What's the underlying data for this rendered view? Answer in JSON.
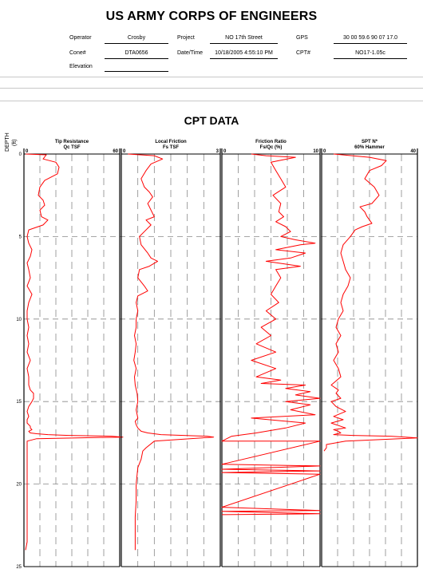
{
  "header": {
    "title": "US ARMY CORPS OF ENGINEERS",
    "operator_label": "Operator",
    "operator": "Crosby",
    "project_label": "Project",
    "project": "NO 17th Street",
    "gps_label": "GPS",
    "gps": "30 00 59.6  90 07 17.0",
    "cone_label": "Cone#",
    "cone": "DTA0656",
    "datetime_label": "Date/Time",
    "datetime": "10/18/2005 4:55:10 PM",
    "cpt_label": "CPT#",
    "cpt": "NO17-1.05c",
    "elevation_label": "Elevation",
    "elevation": ""
  },
  "chart_title": "CPT DATA",
  "depth_axis": {
    "label": "DEPTH",
    "unit": "(ft)",
    "ticks": [
      "0",
      "5",
      "10",
      "15",
      "20",
      "25"
    ],
    "range": [
      0,
      25
    ]
  },
  "colors": {
    "trace": "#ff0000",
    "axis": "#000000",
    "grid": "#888888"
  },
  "chart_data": [
    {
      "type": "line",
      "title": "Tip Resistance",
      "xlabel": "Qc TSF",
      "ylabel": "DEPTH (ft)",
      "xlim": [
        0,
        60
      ],
      "xticks": [
        "0",
        "60"
      ],
      "grid": true,
      "y_inverted": true,
      "series": [
        {
          "x": [
            1,
            14,
            12,
            20,
            22,
            21,
            13,
            10,
            9,
            12,
            13,
            10,
            11,
            15,
            12,
            3,
            2,
            3,
            5,
            4,
            2,
            3,
            4,
            2,
            5,
            3,
            2,
            2,
            3,
            2,
            3,
            2,
            4,
            2,
            3,
            3,
            4,
            6,
            6,
            5,
            3,
            2,
            3,
            2,
            2,
            4,
            4,
            5,
            3,
            4,
            8,
            15,
            28,
            55,
            62,
            8,
            2,
            2,
            2,
            2,
            2,
            2,
            2,
            2,
            2,
            1
          ],
          "y": [
            0,
            0.05,
            0.3,
            0.5,
            0.8,
            1.2,
            1.6,
            2.0,
            2.5,
            2.8,
            3.1,
            3.4,
            3.8,
            4.0,
            4.3,
            4.6,
            5.0,
            5.4,
            5.8,
            6.2,
            6.6,
            7.0,
            7.5,
            8.0,
            8.5,
            9.0,
            9.5,
            10.0,
            10.5,
            11.0,
            11.5,
            12.0,
            12.5,
            13.0,
            13.5,
            14.0,
            14.3,
            14.5,
            14.8,
            15.0,
            15.3,
            15.6,
            15.9,
            16.1,
            16.3,
            16.5,
            16.6,
            16.7,
            16.8,
            16.9,
            16.95,
            17.0,
            17.05,
            17.1,
            17.15,
            17.25,
            17.4,
            17.6,
            18.5,
            19.5,
            20.5,
            21.5,
            21.6,
            22.5,
            23.5,
            24.0
          ]
        }
      ]
    },
    {
      "type": "line",
      "title": "Local Friction",
      "xlabel": "Fs TSF",
      "ylabel": "DEPTH (ft)",
      "xlim": [
        0,
        3
      ],
      "xticks": [
        "0",
        "3"
      ],
      "grid": true,
      "y_inverted": true,
      "series": [
        {
          "x": [
            0.2,
            1.0,
            1.25,
            0.9,
            0.75,
            0.6,
            0.7,
            0.85,
            0.95,
            0.8,
            0.9,
            1.0,
            0.75,
            0.9,
            0.7,
            0.55,
            0.6,
            0.8,
            0.9,
            1.1,
            0.85,
            0.55,
            0.5,
            0.7,
            0.8,
            0.5,
            0.45,
            0.5,
            0.45,
            0.45,
            0.4,
            0.45,
            0.42,
            0.38,
            0.45,
            0.4,
            0.42,
            0.48,
            0.5,
            0.45,
            0.5,
            0.42,
            0.45,
            0.5,
            0.6,
            0.8,
            1.2,
            2.6,
            2.8,
            1.0,
            0.75,
            0.65,
            0.6,
            0.5,
            0.45,
            0.45,
            0.42,
            0.42,
            0.42
          ],
          "y": [
            0,
            0.1,
            0.3,
            0.6,
            1.0,
            1.5,
            2.0,
            2.3,
            2.6,
            3.0,
            3.4,
            3.8,
            4.0,
            4.3,
            4.7,
            5.0,
            5.5,
            6.0,
            6.3,
            6.5,
            6.8,
            7.0,
            7.5,
            8.0,
            8.3,
            8.6,
            9.0,
            9.5,
            10.0,
            10.5,
            11.0,
            11.5,
            12.0,
            12.5,
            13.0,
            13.5,
            14.0,
            14.5,
            15.0,
            15.5,
            16.0,
            16.2,
            16.4,
            16.6,
            16.8,
            16.9,
            17.0,
            17.1,
            17.15,
            17.4,
            17.8,
            18.0,
            18.5,
            19.0,
            20.0,
            21.0,
            22.0,
            23.0,
            24.0
          ]
        }
      ]
    },
    {
      "type": "line",
      "title": "Friction Ratio",
      "xlabel": "Fs/Qc (%)",
      "ylabel": "DEPTH (ft)",
      "xlim": [
        0,
        10
      ],
      "xticks": [
        "0",
        "10"
      ],
      "grid": true,
      "y_inverted": true,
      "series": [
        {
          "x": [
            3.0,
            4.5,
            7.5,
            5.0,
            5.5,
            6.0,
            6.5,
            5.2,
            6.0,
            5.8,
            6.3,
            5.5,
            6.5,
            7.0,
            6.0,
            7.5,
            9.5,
            8.0,
            5.5,
            8.5,
            7.0,
            4.5,
            8.0,
            5.5,
            6.0,
            5.5,
            5.0,
            5.8,
            4.5,
            5.5,
            4.0,
            5.0,
            3.5,
            5.5,
            3.0,
            5.5,
            3.5,
            6.0,
            4.0,
            8.5,
            6.5,
            9.0,
            7.5,
            10.0,
            6.5,
            9.0,
            7.0,
            9.5,
            3.0,
            8.5,
            6.5,
            3.5,
            1.0,
            0,
            10,
            0,
            10,
            0,
            10,
            0,
            10,
            0,
            10,
            0,
            10,
            0
          ],
          "y": [
            0,
            0.1,
            0.2,
            0.5,
            1.0,
            1.5,
            2.0,
            2.5,
            3.0,
            3.5,
            3.8,
            4.1,
            4.4,
            4.7,
            5.0,
            5.2,
            5.4,
            5.5,
            5.8,
            6.0,
            6.3,
            6.5,
            6.8,
            7.0,
            7.5,
            8.0,
            8.5,
            9.0,
            9.5,
            10.0,
            10.5,
            11.0,
            11.5,
            12.0,
            12.5,
            13.0,
            13.5,
            13.7,
            13.9,
            14.0,
            14.2,
            14.4,
            14.6,
            14.8,
            15.0,
            15.2,
            15.5,
            15.8,
            16.0,
            16.3,
            16.6,
            16.9,
            17.1,
            17.4,
            17.4,
            18.8,
            18.9,
            19.1,
            19.2,
            19.3,
            19.4,
            21.4,
            21.6,
            21.65,
            21.8,
            21.85
          ]
        }
      ]
    },
    {
      "type": "line",
      "title": "SPT N*",
      "xlabel": "60% Hammer",
      "ylabel": "DEPTH (ft)",
      "xlim": [
        0,
        40
      ],
      "xticks": [
        "0",
        "40"
      ],
      "grid": true,
      "y_inverted": true,
      "series": [
        {
          "x": [
            5,
            20,
            27,
            25,
            20,
            18,
            22,
            24,
            21,
            16,
            18,
            19,
            20,
            21,
            17,
            14,
            12,
            9,
            8,
            9,
            10,
            12,
            11,
            9,
            8,
            9,
            7,
            6,
            8,
            6,
            7,
            5,
            7,
            8,
            4,
            7,
            6,
            8,
            4,
            6,
            10,
            5,
            9,
            4,
            8,
            10,
            5,
            7,
            8,
            5,
            13,
            29,
            35,
            40,
            10,
            2,
            2,
            1
          ],
          "y": [
            0,
            0.2,
            0.4,
            0.7,
            1.0,
            1.5,
            2.0,
            2.5,
            3.0,
            3.2,
            3.5,
            3.8,
            4.0,
            4.2,
            4.4,
            4.6,
            5.0,
            5.5,
            6.0,
            6.5,
            7.0,
            7.5,
            8.0,
            8.5,
            9.0,
            9.5,
            10.0,
            10.5,
            11.0,
            11.5,
            12.0,
            12.5,
            13.0,
            13.5,
            14.0,
            14.3,
            14.5,
            14.8,
            15.0,
            15.3,
            15.6,
            15.9,
            16.1,
            16.3,
            16.5,
            16.6,
            16.7,
            16.8,
            16.9,
            17.0,
            17.05,
            17.1,
            17.15,
            17.2,
            17.4,
            17.6,
            17.8,
            18.0
          ]
        }
      ]
    }
  ]
}
